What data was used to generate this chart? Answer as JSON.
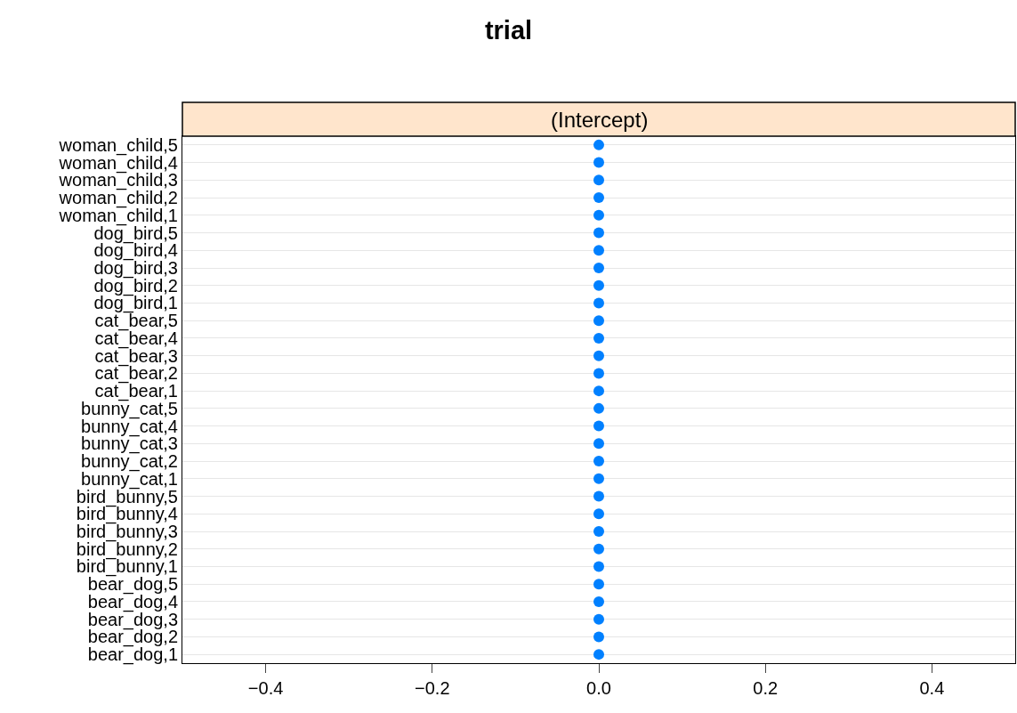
{
  "chart_data": {
    "type": "scatter",
    "title": "trial",
    "orientation": "horizontal",
    "annotations": [
      "(Intercept)"
    ],
    "categories": [
      "woman_child,5",
      "woman_child,4",
      "woman_child,3",
      "woman_child,2",
      "woman_child,1",
      "dog_bird,5",
      "dog_bird,4",
      "dog_bird,3",
      "dog_bird,2",
      "dog_bird,1",
      "cat_bear,5",
      "cat_bear,4",
      "cat_bear,3",
      "cat_bear,2",
      "cat_bear,1",
      "bunny_cat,5",
      "bunny_cat,4",
      "bunny_cat,3",
      "bunny_cat,2",
      "bunny_cat,1",
      "bird_bunny,5",
      "bird_bunny,4",
      "bird_bunny,3",
      "bird_bunny,2",
      "bird_bunny,1",
      "bear_dog,5",
      "bear_dog,4",
      "bear_dog,3",
      "bear_dog,2",
      "bear_dog,1"
    ],
    "values": [
      0,
      0,
      0,
      0,
      0,
      0,
      0,
      0,
      0,
      0,
      0,
      0,
      0,
      0,
      0,
      0,
      0,
      0,
      0,
      0,
      0,
      0,
      0,
      0,
      0,
      0,
      0,
      0,
      0,
      0
    ],
    "color": "#0080ff",
    "marker": "circle",
    "grid": "y",
    "xlim": [
      -0.5,
      0.5
    ],
    "xticks": [
      {
        "value": -0.4,
        "label": "−0.4"
      },
      {
        "value": -0.2,
        "label": "−0.2"
      },
      {
        "value": 0,
        "label": "0.0"
      },
      0.2,
      0.4
    ]
  }
}
